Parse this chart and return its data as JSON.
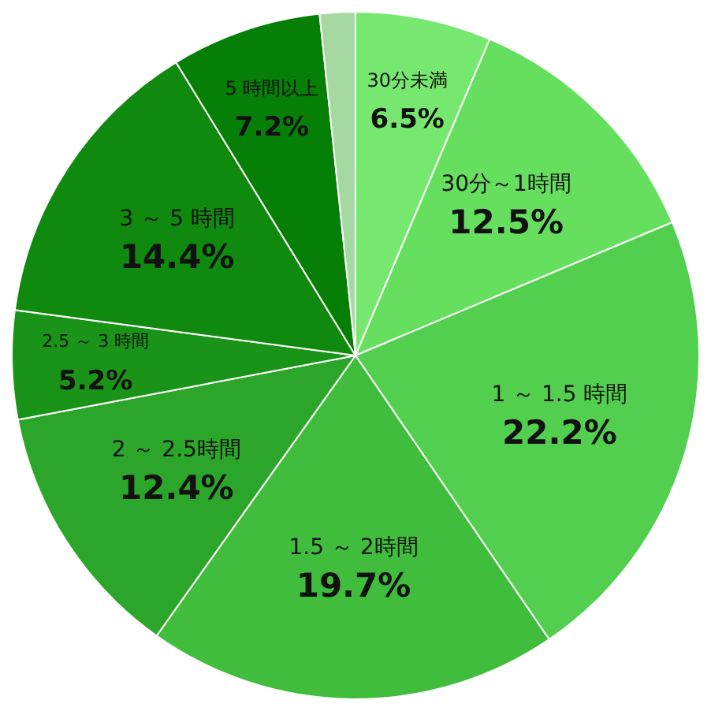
{
  "chart_data": {
    "type": "pie",
    "categories": [
      "30分未満",
      "30分～1時間",
      "1 ～ 1.5 時間",
      "1.5 ～ 2時間",
      "2 ～ 2.5時間",
      "2.5 ～ 3 時間",
      "3 ～ 5 時間",
      "5 時間以上",
      null
    ],
    "values": [
      6.5,
      12.5,
      22.2,
      19.7,
      12.4,
      5.2,
      14.4,
      7.2,
      1.7
    ],
    "value_labels": [
      "6.5%",
      "12.5%",
      "22.2%",
      "19.7%",
      "12.4%",
      "5.2%",
      "14.4%",
      "7.2%",
      null
    ],
    "colors": [
      "#77e86f",
      "#66df5f",
      "#52cf4f",
      "#40bd3c",
      "#2ca62a",
      "#1a9418",
      "#0f8a0e",
      "#057f05",
      "#a6d9a2"
    ]
  }
}
